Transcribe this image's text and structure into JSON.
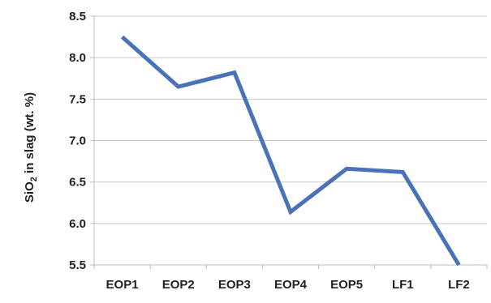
{
  "chart_data": {
    "type": "line",
    "title": "",
    "xlabel": "",
    "ylabel_main": "SiO",
    "ylabel_sub": "2",
    "ylabel_rest": " in slag (wt. %)",
    "categories": [
      "EOP1",
      "EOP2",
      "EOP3",
      "EOP4",
      "EOP5",
      "LF1",
      "LF2"
    ],
    "series": [
      {
        "values": [
          8.25,
          7.65,
          7.82,
          6.14,
          6.66,
          6.62,
          5.5
        ],
        "color": "#4a72b8"
      }
    ],
    "ylim": [
      5.5,
      8.5
    ],
    "yticks": [
      5.5,
      6.0,
      6.5,
      7.0,
      7.5,
      8.0,
      8.5
    ],
    "ytick_labels": [
      "5.5",
      "6.0",
      "6.5",
      "7.0",
      "7.5",
      "8.0",
      "8.5"
    ],
    "grid": true,
    "legend": "none"
  }
}
